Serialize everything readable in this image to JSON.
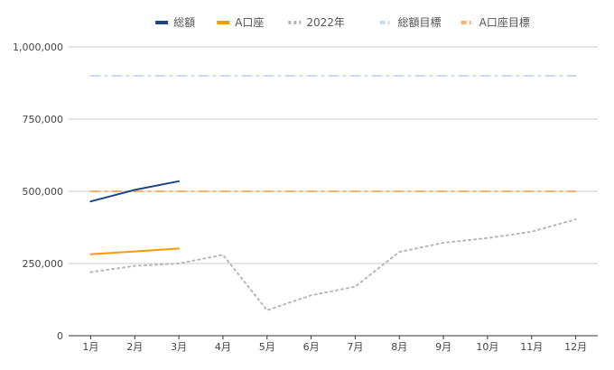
{
  "chart_data": {
    "type": "line",
    "categories": [
      "1月",
      "2月",
      "3月",
      "4月",
      "5月",
      "6月",
      "7月",
      "8月",
      "9月",
      "10月",
      "11月",
      "12月"
    ],
    "ylim": [
      0,
      1000000
    ],
    "yticks": [
      0,
      250000,
      500000,
      750000,
      1000000
    ],
    "ytick_labels": [
      "0",
      "250,000",
      "500,000",
      "750,000",
      "1,000,000"
    ],
    "grid": true,
    "legend_position": "top",
    "series": [
      {
        "name": "総額",
        "color": "#1c4587",
        "style": "solid",
        "values": [
          465000,
          505000,
          535000,
          null,
          null,
          null,
          null,
          null,
          null,
          null,
          null,
          null
        ]
      },
      {
        "name": "A口座",
        "color": "#ff9900",
        "style": "solid",
        "values": [
          282000,
          292000,
          302000,
          null,
          null,
          null,
          null,
          null,
          null,
          null,
          null,
          null
        ]
      },
      {
        "name": "2022年",
        "color": "#b7b7b7",
        "style": "dotted",
        "values": [
          220000,
          242000,
          250000,
          280000,
          88000,
          140000,
          170000,
          290000,
          322000,
          338000,
          360000,
          403000
        ]
      },
      {
        "name": "総額目標",
        "color": "#c9daf8",
        "style": "dashdot",
        "values": [
          900000,
          900000,
          900000,
          900000,
          900000,
          900000,
          900000,
          900000,
          900000,
          900000,
          900000,
          900000
        ]
      },
      {
        "name": "A口座目標",
        "color": "#f6b26b",
        "style": "dashdot",
        "values": [
          500000,
          500000,
          500000,
          500000,
          500000,
          500000,
          500000,
          500000,
          500000,
          500000,
          500000,
          500000
        ]
      }
    ]
  }
}
